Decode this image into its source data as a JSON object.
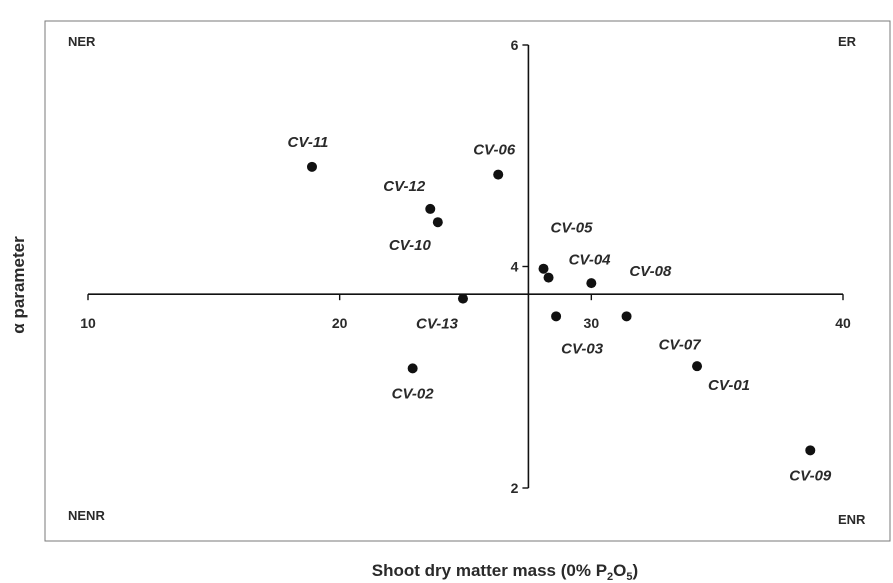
{
  "chart_data": {
    "type": "scatter",
    "xlabel_main": "Shoot dry matter mass (0% P",
    "xlabel_sub1": "2",
    "xlabel_mid": "O",
    "xlabel_sub2": "5",
    "xlabel_end": ")",
    "ylabel": "α parameter",
    "xlim": [
      10,
      40
    ],
    "ylim": [
      2,
      6
    ],
    "x_cross": 27.5,
    "y_cross": 3.75,
    "x_ticks": [
      10,
      20,
      30,
      40
    ],
    "y_ticks": [
      2,
      4,
      6
    ],
    "quadrants": {
      "top_left": "NER",
      "top_right": "ER",
      "bottom_left": "NENR",
      "bottom_right": "ENR"
    },
    "points": [
      {
        "label": "CV-11",
        "x": 18.9,
        "y": 4.9,
        "label_pos": "above"
      },
      {
        "label": "CV-06",
        "x": 26.3,
        "y": 4.83,
        "label_pos": "above"
      },
      {
        "label": "CV-12",
        "x": 23.6,
        "y": 4.52,
        "label_pos": "above-left"
      },
      {
        "label": "CV-10",
        "x": 23.9,
        "y": 4.4,
        "label_pos": "below-left"
      },
      {
        "label": "CV-05",
        "x": 28.1,
        "y": 3.98,
        "label_pos": "above-right"
      },
      {
        "label": "CV-04",
        "x": 28.3,
        "y": 3.9,
        "label_pos": "right"
      },
      {
        "label": "CV-08",
        "x": 30.0,
        "y": 3.85,
        "label_pos": "above-right"
      },
      {
        "label": "CV-13",
        "x": 24.9,
        "y": 3.71,
        "label_pos": "below"
      },
      {
        "label": "CV-03",
        "x": 28.6,
        "y": 3.55,
        "label_pos": "below"
      },
      {
        "label": "CV-07",
        "x": 31.4,
        "y": 3.55,
        "label_pos": "right"
      },
      {
        "label": "CV-02",
        "x": 22.9,
        "y": 3.08,
        "label_pos": "below"
      },
      {
        "label": "CV-01",
        "x": 34.2,
        "y": 3.1,
        "label_pos": "below-right"
      },
      {
        "label": "CV-09",
        "x": 38.7,
        "y": 2.34,
        "label_pos": "below"
      }
    ]
  }
}
